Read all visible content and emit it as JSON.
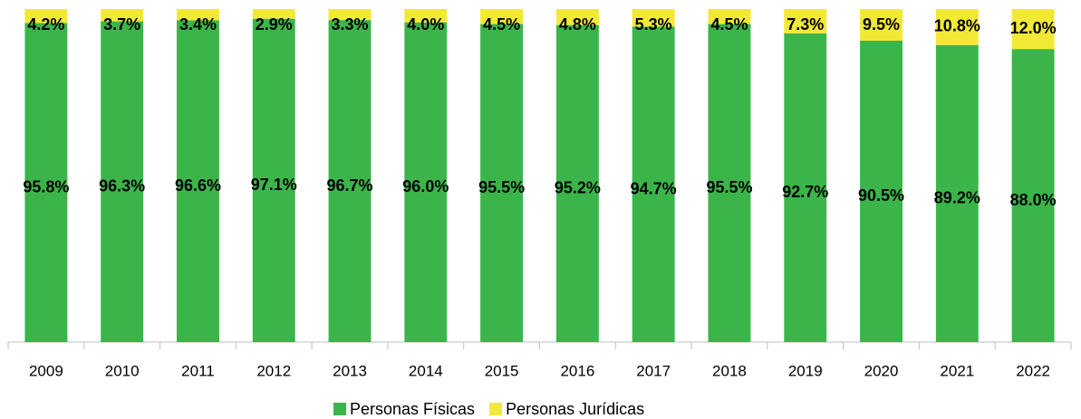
{
  "chart_data": {
    "type": "stacked_bar",
    "categories": [
      "2009",
      "2010",
      "2011",
      "2012",
      "2013",
      "2014",
      "2015",
      "2016",
      "2017",
      "2018",
      "2019",
      "2020",
      "2021",
      "2022"
    ],
    "ylim": [
      0,
      100
    ],
    "series": [
      {
        "name": "Personas Físicas",
        "color": "#3bb54a",
        "values": [
          95.8,
          96.3,
          96.6,
          97.1,
          96.7,
          96.0,
          95.5,
          95.2,
          94.7,
          95.5,
          92.7,
          90.5,
          89.2,
          88.0
        ],
        "value_labels": [
          "95.8%",
          "96.3%",
          "96.6%",
          "97.1%",
          "96.7%",
          "96.0%",
          "95.5%",
          "95.2%",
          "94.7%",
          "95.5%",
          "92.7%",
          "90.5%",
          "89.2%",
          "88.0%"
        ]
      },
      {
        "name": "Personas Jurídicas",
        "color": "#f2e936",
        "values": [
          4.2,
          3.7,
          3.4,
          2.9,
          3.3,
          4.0,
          4.5,
          4.8,
          5.3,
          4.5,
          7.3,
          9.5,
          10.8,
          12.0
        ],
        "value_labels": [
          "4.2%",
          "3.7%",
          "3.4%",
          "2.9%",
          "3.3%",
          "4.0%",
          "4.5%",
          "4.8%",
          "5.3%",
          "4.5%",
          "7.3%",
          "9.5%",
          "10.8%",
          "12.0%"
        ]
      }
    ]
  }
}
